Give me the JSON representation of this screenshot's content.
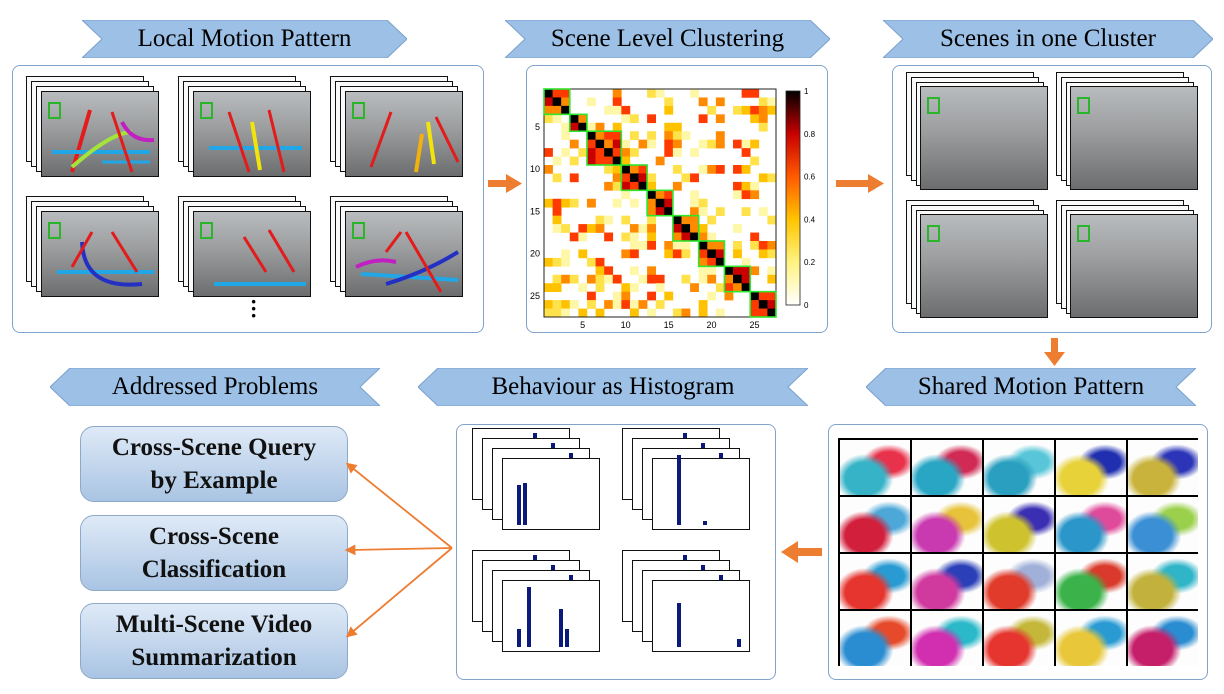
{
  "banners": {
    "local_motion": "Local Motion Pattern",
    "scene_clustering": "Scene Level Clustering",
    "scenes_cluster": "Scenes in one Cluster",
    "addressed": "Addressed Problems",
    "behaviour": "Behaviour as Histogram",
    "shared_motion": "Shared Motion Pattern"
  },
  "matrix": {
    "y_ticks": [
      "5",
      "10",
      "15",
      "20",
      "25"
    ],
    "x_ticks": [
      "5",
      "10",
      "15",
      "20",
      "25"
    ],
    "colorbar_ticks": [
      "1",
      "0.8",
      "0.6",
      "0.4",
      "0.2",
      "0"
    ]
  },
  "problems": {
    "p1": "Cross-Scene Query\nby Example",
    "p2": "Cross-Scene\nClassification",
    "p3": "Multi-Scene Video\nSummarization"
  },
  "colors": {
    "banner_fill": "#9cc0e6",
    "panel_border": "#7fa3c9",
    "arrow": "#ed7d31",
    "bar": "#0b1a7a",
    "cluster_box": "#2ee62e"
  }
}
